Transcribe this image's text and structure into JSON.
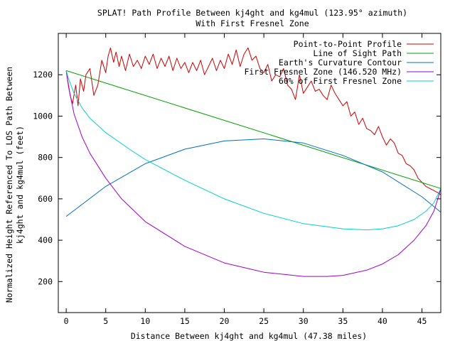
{
  "chart_data": {
    "type": "line",
    "title": [
      "SPLAT! Path Profile Between kj4ght and kg4mul (123.95° azimuth)",
      "With First Fresnel Zone"
    ],
    "xlabel": "Distance Between kj4ght and kg4mul (47.38 miles)",
    "ylabel": [
      "Normalized Height Referenced To LOS Path Between",
      "kj4ght and kg4mul (feet)"
    ],
    "xlim": [
      -1,
      47.38
    ],
    "ylim": [
      50,
      1400
    ],
    "x_ticks": [
      "0",
      "5",
      "10",
      "15",
      "20",
      "25",
      "30",
      "35",
      "40",
      "45"
    ],
    "y_ticks": [
      "200",
      "400",
      "600",
      "800",
      "1000",
      "1200"
    ],
    "grid": false,
    "legend_position": "top-right",
    "series": [
      {
        "name": "Point-to-Point Profile",
        "color": "#cc0000",
        "x": [
          0,
          0.5,
          0.8,
          1.2,
          1.5,
          1.8,
          2.2,
          2.5,
          3.0,
          3.5,
          4.0,
          4.5,
          5.0,
          5.3,
          5.6,
          6.0,
          6.3,
          6.7,
          7.0,
          7.5,
          8.0,
          8.5,
          9.0,
          9.5,
          10.0,
          10.5,
          11.0,
          11.5,
          12.0,
          12.5,
          13.0,
          13.5,
          14.0,
          14.5,
          15.0,
          15.5,
          16.0,
          16.5,
          17.0,
          17.5,
          18.0,
          18.5,
          19.0,
          19.5,
          20.0,
          20.5,
          21.0,
          21.5,
          22.0,
          22.5,
          23.0,
          23.5,
          24.0,
          24.5,
          25.0,
          25.5,
          26.0,
          26.5,
          27.0,
          27.5,
          28.0,
          28.5,
          29.0,
          29.5,
          30.0,
          30.5,
          31.0,
          31.5,
          32.0,
          32.5,
          33.0,
          33.5,
          34.0,
          34.5,
          35.0,
          35.5,
          36.0,
          36.5,
          37.0,
          37.5,
          38.0,
          38.5,
          39.0,
          39.5,
          40.0,
          40.5,
          41.0,
          41.5,
          42.0,
          42.5,
          43.0,
          43.5,
          44.0,
          44.5,
          45.0,
          45.5,
          46.0,
          46.5,
          47.0,
          47.38
        ],
        "y": [
          1220,
          1100,
          1060,
          1150,
          1050,
          1180,
          1120,
          1200,
          1230,
          1100,
          1150,
          1270,
          1210,
          1290,
          1330,
          1260,
          1310,
          1240,
          1290,
          1220,
          1300,
          1240,
          1270,
          1230,
          1290,
          1250,
          1300,
          1230,
          1280,
          1240,
          1290,
          1220,
          1280,
          1230,
          1260,
          1210,
          1260,
          1220,
          1270,
          1200,
          1240,
          1280,
          1220,
          1270,
          1230,
          1300,
          1250,
          1320,
          1240,
          1300,
          1330,
          1270,
          1290,
          1230,
          1210,
          1250,
          1170,
          1200,
          1190,
          1230,
          1150,
          1130,
          1080,
          1200,
          1110,
          1140,
          1170,
          1120,
          1130,
          1100,
          1080,
          1150,
          1110,
          1080,
          1050,
          1070,
          1000,
          1020,
          960,
          990,
          940,
          930,
          910,
          950,
          900,
          860,
          890,
          870,
          820,
          810,
          770,
          760,
          740,
          700,
          680,
          660,
          650,
          640,
          630,
          620
        ]
      },
      {
        "name": "Line of Sight Path",
        "color": "#00a000",
        "x": [
          0,
          47.38
        ],
        "y": [
          1220,
          650
        ]
      },
      {
        "name": "Earth's Curvature Contour",
        "color": "#0070c0",
        "x": [
          0,
          5,
          10,
          15,
          20,
          25,
          30,
          35,
          40,
          45,
          47.38
        ],
        "y": [
          515,
          660,
          770,
          840,
          880,
          890,
          870,
          810,
          730,
          610,
          535
        ]
      },
      {
        "name": "First Fresnel Zone (146.520 MHz)",
        "color": "#a000c8",
        "x": [
          0,
          0.3,
          1,
          2,
          3,
          5,
          7,
          10,
          15,
          20,
          25,
          30,
          33,
          35,
          38,
          40,
          42,
          44,
          45.5,
          46.5,
          47.0,
          47.38
        ],
        "y": [
          1220,
          1140,
          1010,
          900,
          820,
          700,
          600,
          490,
          370,
          290,
          245,
          225,
          225,
          230,
          255,
          285,
          330,
          400,
          470,
          540,
          600,
          650
        ]
      },
      {
        "name": "60% of First Fresnel Zone",
        "color": "#00d0d0",
        "x": [
          0,
          0.3,
          1,
          2,
          3,
          5,
          8,
          10,
          15,
          20,
          25,
          30,
          35,
          38,
          40,
          42,
          44,
          45.5,
          46.5,
          47.38
        ],
        "y": [
          1220,
          1180,
          1110,
          1040,
          990,
          920,
          840,
          790,
          690,
          600,
          530,
          480,
          455,
          450,
          455,
          470,
          500,
          540,
          580,
          650
        ]
      }
    ]
  }
}
